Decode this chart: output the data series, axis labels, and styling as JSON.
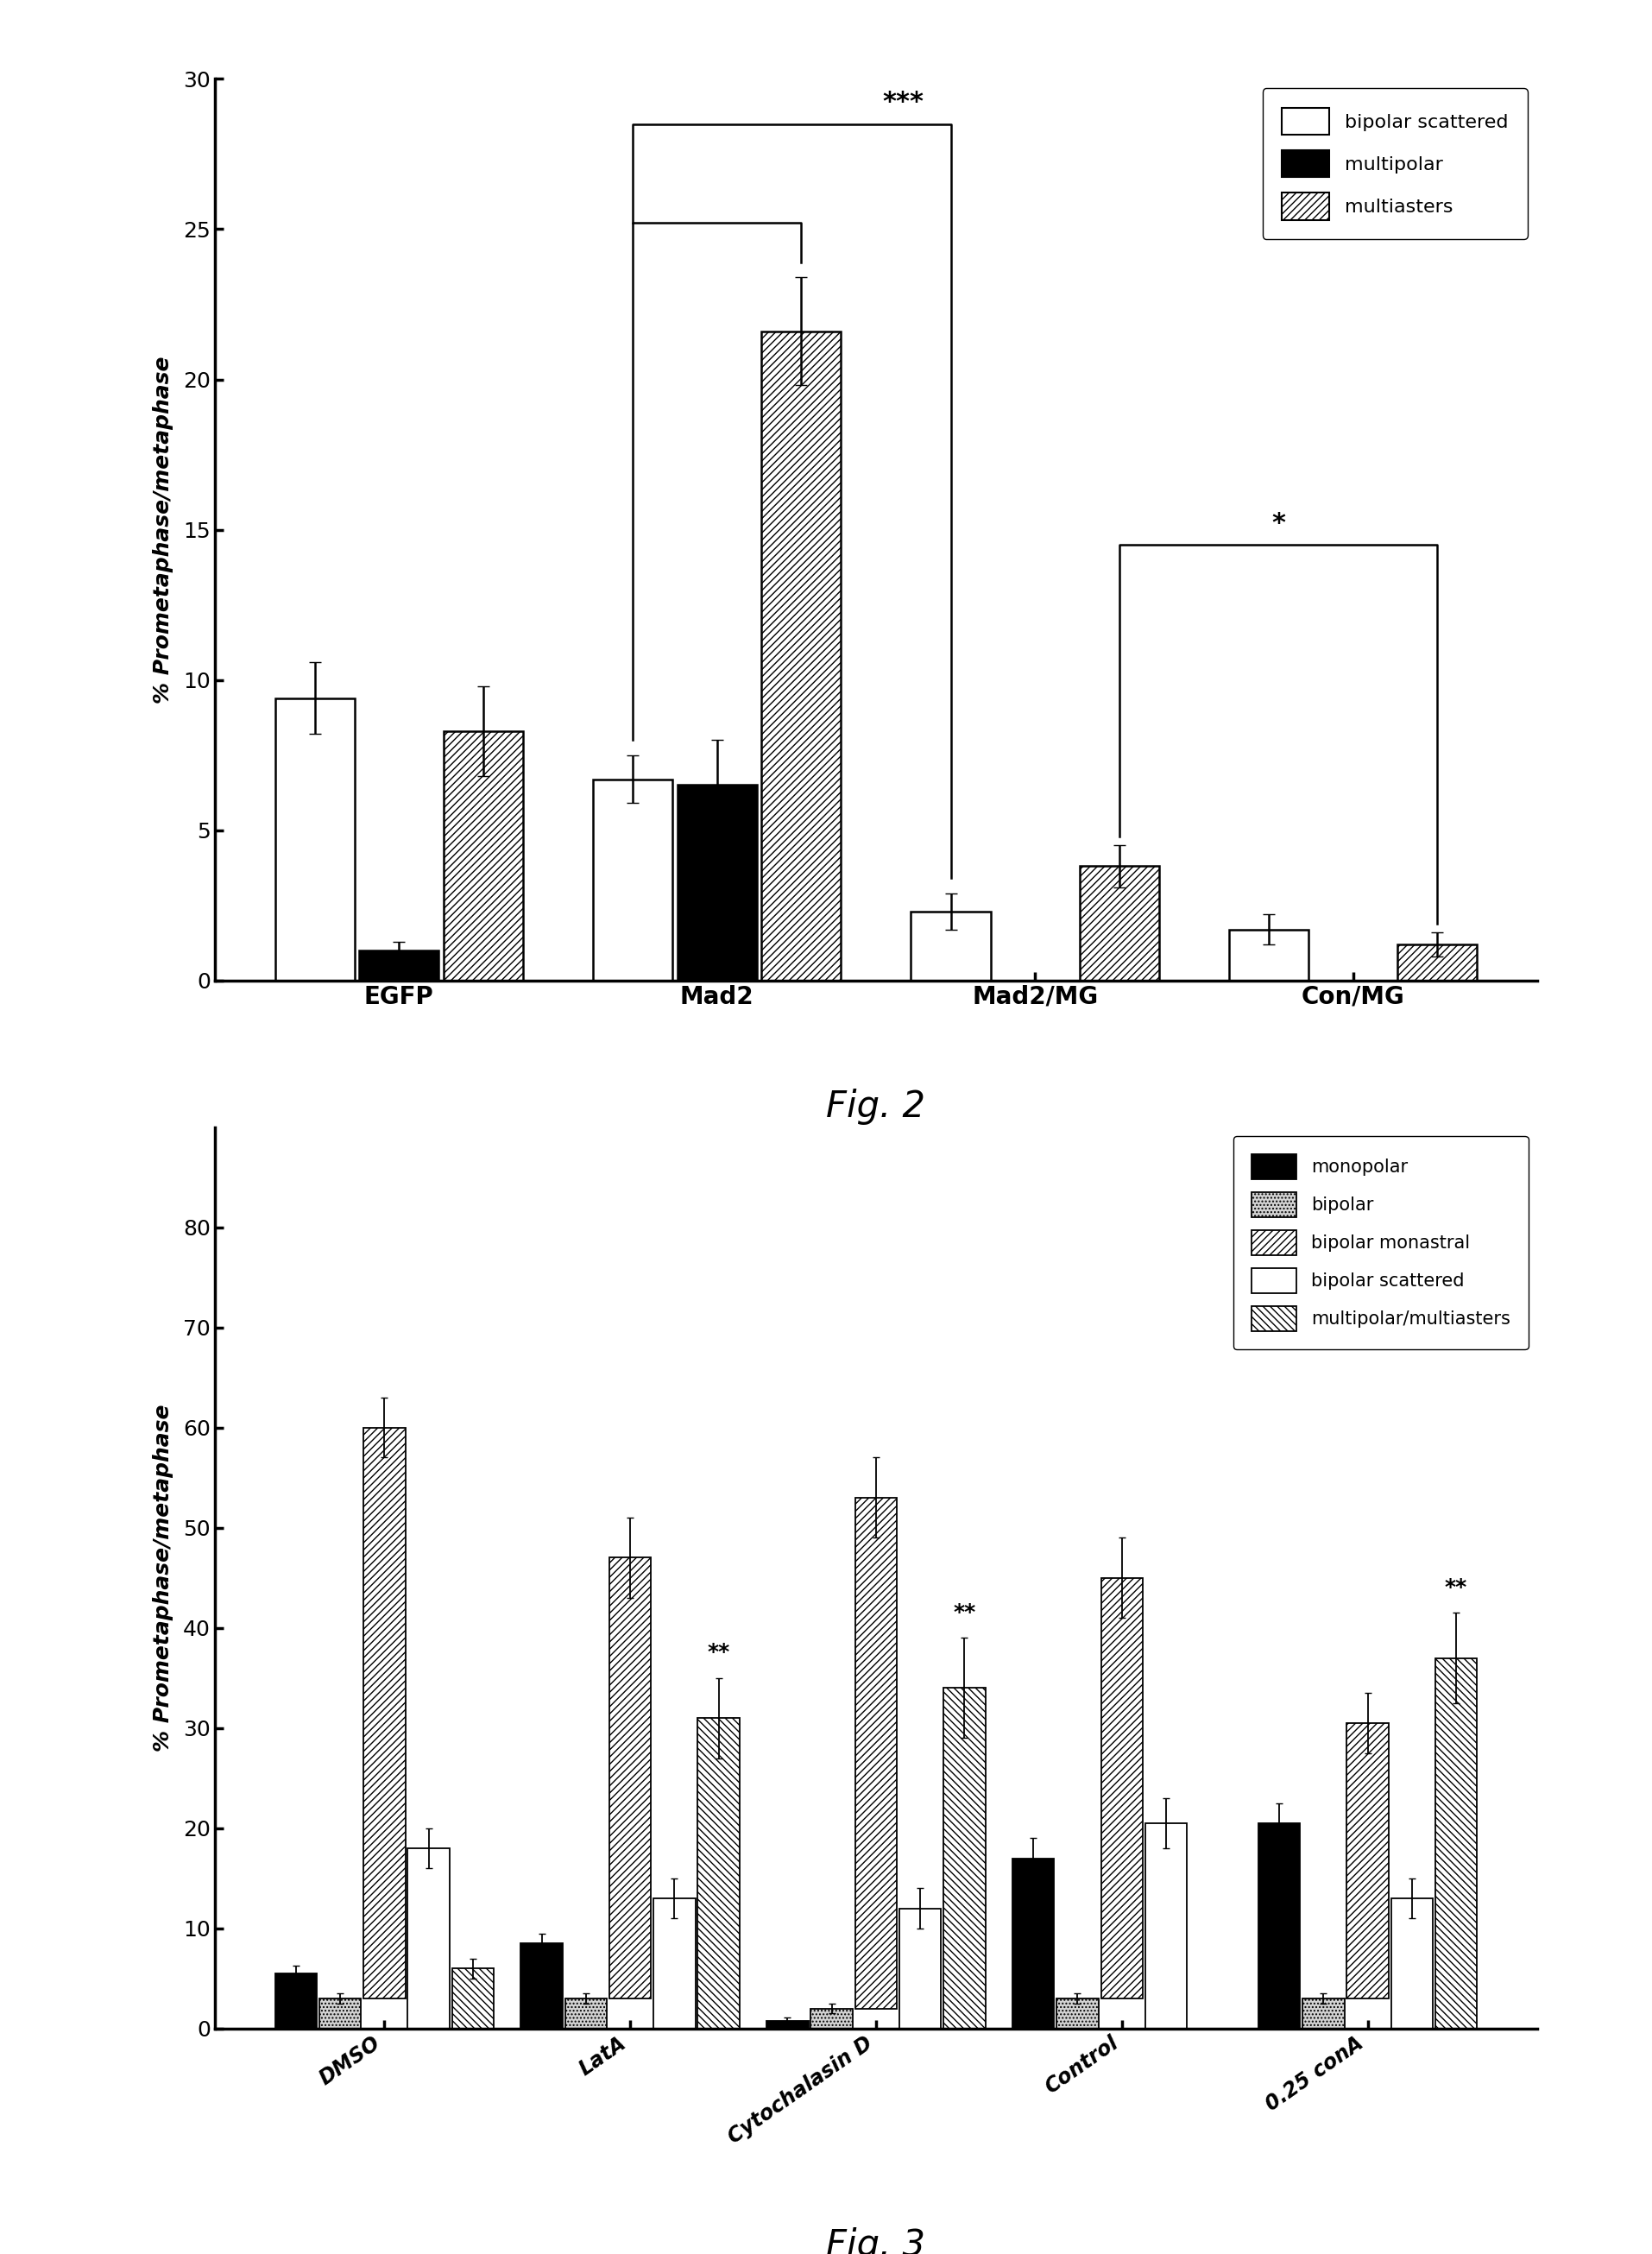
{
  "fig2": {
    "categories": [
      "EGFP",
      "Mad2",
      "Mad2/MG",
      "Con/MG"
    ],
    "bipolar_scattered": [
      9.4,
      6.7,
      2.3,
      1.7
    ],
    "bipolar_scattered_err": [
      1.2,
      0.8,
      0.6,
      0.5
    ],
    "multipolar": [
      1.0,
      6.5,
      0.0,
      0.0
    ],
    "multipolar_err": [
      0.3,
      1.5,
      0.0,
      0.0
    ],
    "multiasters": [
      8.3,
      21.6,
      3.8,
      1.2
    ],
    "multiasters_err": [
      1.5,
      1.8,
      0.7,
      0.4
    ],
    "ylim": [
      0,
      30
    ],
    "yticks": [
      0,
      5,
      10,
      15,
      20,
      25,
      30
    ],
    "ylabel": "% Prometaphase/metaphase"
  },
  "fig3": {
    "categories": [
      "DMSO",
      "LatA",
      "Cytochalasin D",
      "Control",
      "0.25 conA"
    ],
    "monopolar": [
      5.5,
      8.5,
      0.8,
      17.0,
      20.5
    ],
    "monopolar_err": [
      0.8,
      1.0,
      0.3,
      2.0,
      2.0
    ],
    "bipolar": [
      3.0,
      3.0,
      2.0,
      3.0,
      3.0
    ],
    "bipolar_err": [
      0.5,
      0.5,
      0.5,
      0.5,
      0.5
    ],
    "bipolar_monastral_top": [
      57.0,
      44.0,
      51.0,
      42.0,
      27.5
    ],
    "bipolar_monastral_top_err": [
      3.0,
      4.0,
      4.0,
      4.0,
      3.0
    ],
    "bipolar_scattered": [
      18.0,
      13.0,
      12.0,
      20.5,
      13.0
    ],
    "bipolar_scattered_err": [
      2.0,
      2.0,
      2.0,
      2.5,
      2.0
    ],
    "multipolar_multiasters": [
      6.0,
      31.0,
      34.0,
      0.0,
      37.0
    ],
    "multipolar_multiasters_err": [
      1.0,
      4.0,
      5.0,
      0.0,
      4.5
    ],
    "ylim": [
      0,
      90
    ],
    "yticks": [
      0,
      10,
      20,
      30,
      40,
      50,
      60,
      70,
      80
    ],
    "ylabel": "% Prometaphase/metaphase"
  }
}
